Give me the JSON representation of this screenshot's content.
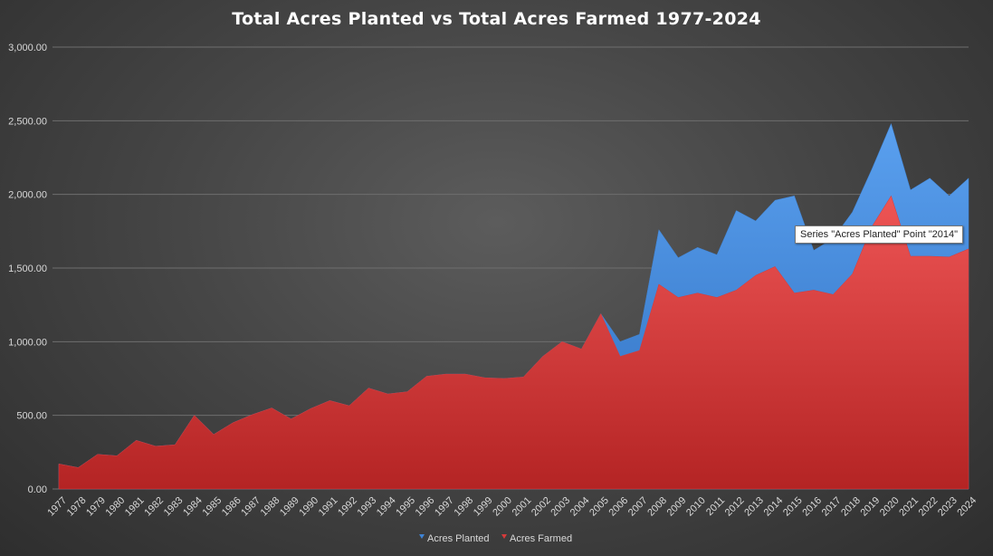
{
  "chart_data": {
    "type": "area",
    "title": "Total Acres Planted vs Total Acres Farmed 1977-2024",
    "xlabel": "",
    "ylabel": "",
    "ylim": [
      0,
      3000
    ],
    "yticks": [
      "0.00",
      "500.00",
      "1,000.00",
      "1,500.00",
      "2,000.00",
      "2,500.00",
      "3,000.00"
    ],
    "grid": true,
    "legend_position": "bottom",
    "x": [
      "1977",
      "1978",
      "1979",
      "1980",
      "1981",
      "1982",
      "1983",
      "1984",
      "1985",
      "1986",
      "1987",
      "1988",
      "1989",
      "1990",
      "1991",
      "1992",
      "1993",
      "1994",
      "1995",
      "1996",
      "1997",
      "1998",
      "1999",
      "2000",
      "2001",
      "2002",
      "2003",
      "2004",
      "2005",
      "2006",
      "2007",
      "2008",
      "2009",
      "2010",
      "2011",
      "2012",
      "2013",
      "2014",
      "2015",
      "2016",
      "2017",
      "2018",
      "2019",
      "2020",
      "2021",
      "2022",
      "2023",
      "2024"
    ],
    "series": [
      {
        "name": "Acres Planted",
        "color": "#3f84d6",
        "values": [
          170,
          145,
          235,
          225,
          330,
          290,
          300,
          500,
          370,
          450,
          505,
          550,
          475,
          545,
          600,
          565,
          685,
          645,
          660,
          765,
          780,
          780,
          755,
          750,
          760,
          900,
          1000,
          950,
          1190,
          1000,
          1050,
          1760,
          1570,
          1640,
          1590,
          1890,
          1820,
          1960,
          1990,
          1620,
          1700,
          1880,
          2170,
          2480,
          2030,
          2110,
          1990,
          2110
        ]
      },
      {
        "name": "Acres Farmed",
        "color": "#d63a3a",
        "values": [
          170,
          145,
          235,
          225,
          330,
          290,
          300,
          500,
          370,
          450,
          505,
          550,
          475,
          545,
          600,
          565,
          685,
          645,
          660,
          765,
          780,
          780,
          755,
          750,
          760,
          900,
          1000,
          950,
          1190,
          900,
          940,
          1390,
          1300,
          1330,
          1300,
          1350,
          1450,
          1510,
          1330,
          1350,
          1320,
          1460,
          1780,
          1990,
          1580,
          1580,
          1575,
          1630
        ]
      }
    ],
    "tooltip": "Series \"Acres Planted\" Point \"2014\""
  }
}
